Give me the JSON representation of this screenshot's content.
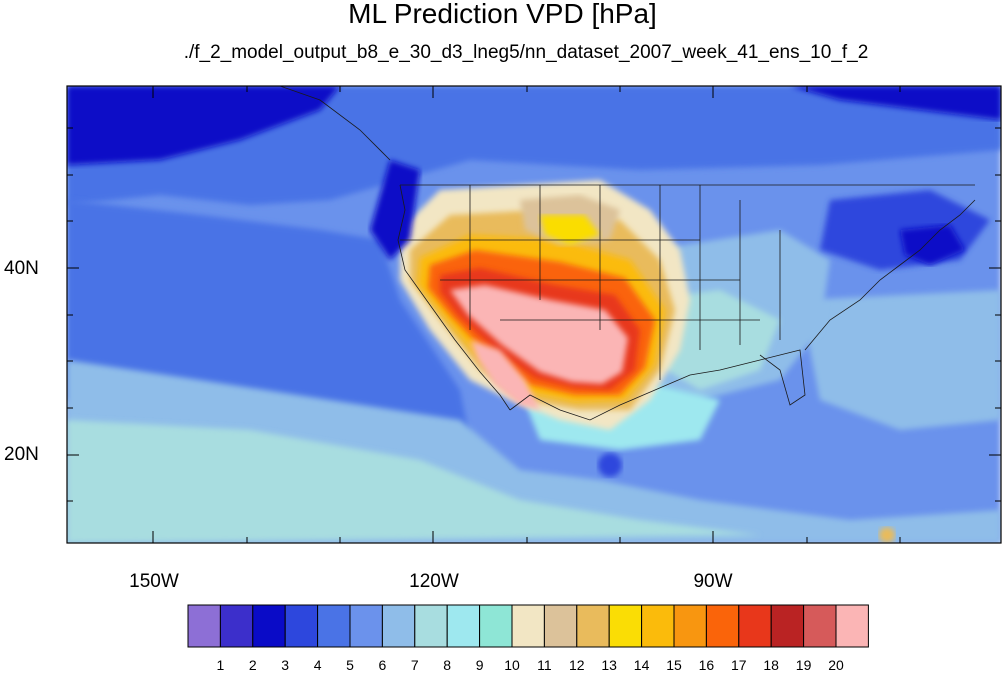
{
  "title": "ML Prediction VPD [hPa]",
  "subtitle": "./f_2_model_output_b8_e_30_d3_lneg5/nn_dataset_2007_week_41_ens_10_f_2",
  "map": {
    "projection": "cylindrical equidistant",
    "lon_range": [
      -159.5,
      -60.5
    ],
    "lat_range": [
      10.5,
      59.5
    ],
    "lat_labels": [
      "40N",
      "20N"
    ],
    "lon_labels": [
      "150W",
      "120W",
      "90W"
    ]
  },
  "colorbar": {
    "levels": [
      "1",
      "2",
      "3",
      "4",
      "5",
      "6",
      "7",
      "8",
      "9",
      "10",
      "11",
      "12",
      "13",
      "14",
      "15",
      "16",
      "17",
      "18",
      "19",
      "20"
    ],
    "colors": [
      "#8d6fd6",
      "#3c2fcb",
      "#0a0bc7",
      "#2d47dd",
      "#4a73e6",
      "#6b92ec",
      "#8fbde9",
      "#a8dde0",
      "#9ee8ef",
      "#8ee6d6",
      "#f2e6c4",
      "#dcc29a",
      "#e9bb5c",
      "#fadd05",
      "#fbbb0b",
      "#f89610",
      "#fa640a",
      "#e8371b",
      "#ba2323",
      "#d65a5a",
      "#fbb5b5"
    ]
  }
}
